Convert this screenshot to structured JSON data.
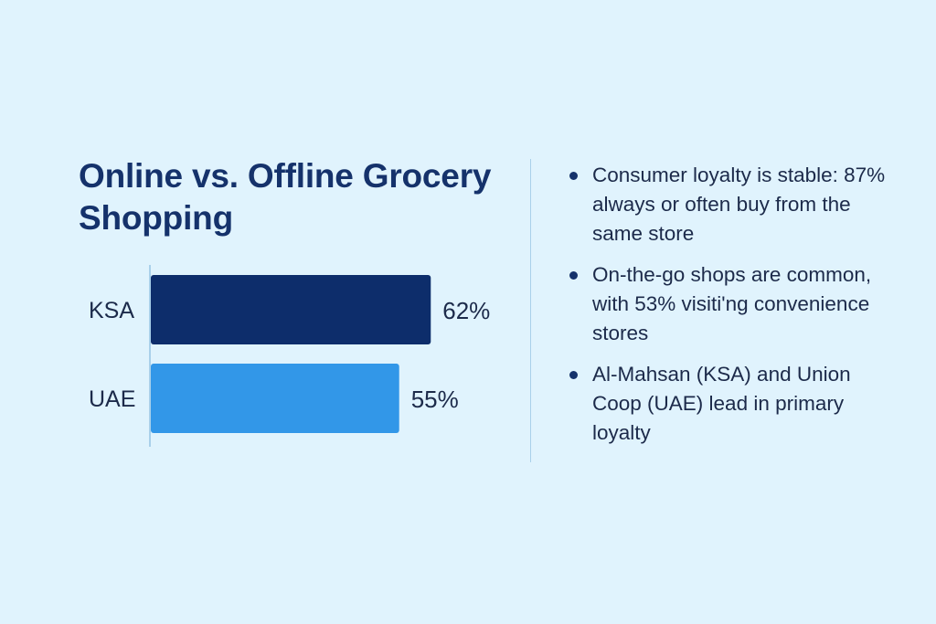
{
  "slide": {
    "title": "Online vs. Offline Grocery Shopping"
  },
  "chart_data": {
    "type": "bar",
    "orientation": "horizontal",
    "categories": [
      "KSA",
      "UAE"
    ],
    "values": [
      62,
      55
    ],
    "value_labels": [
      "62%",
      "55%"
    ],
    "colors": [
      "#0d2d6b",
      "#3297e8"
    ],
    "xlim": [
      0,
      100
    ],
    "grid": false,
    "legend": "none"
  },
  "bullets": [
    "Consumer loyalty is stable: 87% always or often buy from the same store",
    "On-the-go shops are common, with 53% visiti'ng convenience stores",
    "Al-Mahsan (KSA) and Union Coop (UAE) lead in primary loyalty"
  ],
  "colors": {
    "background": "#e0f3fd",
    "title": "#15326b",
    "text": "#1c2a4a",
    "axis": "#a9d0ea"
  }
}
